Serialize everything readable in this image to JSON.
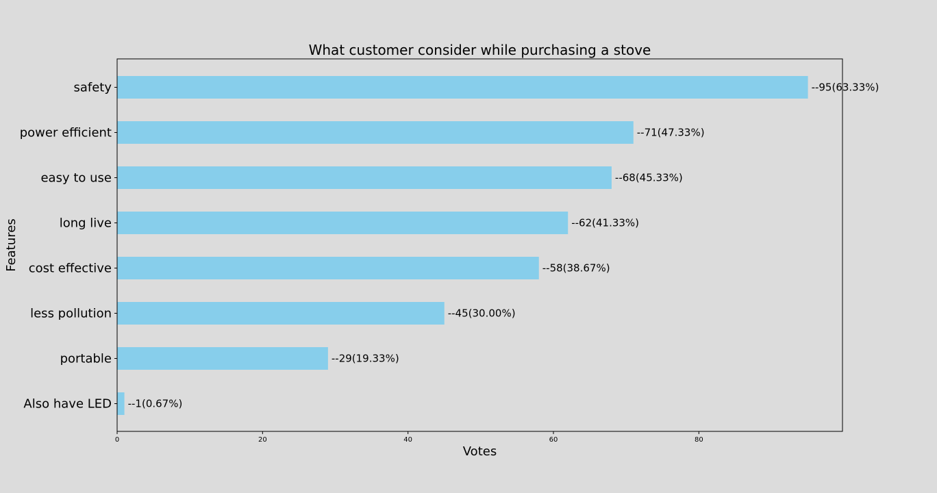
{
  "chart_data": {
    "type": "bar",
    "orientation": "horizontal",
    "title": "What customer consider while purchasing a stove",
    "xlabel": "Votes",
    "ylabel": "Features",
    "categories": [
      "safety",
      "power efficient",
      "easy to use",
      "long live",
      "cost effective",
      "less pollution",
      "portable",
      "Also have LED"
    ],
    "values": [
      95,
      71,
      68,
      62,
      58,
      45,
      29,
      1
    ],
    "data_labels": [
      "--95(63.33%)",
      "--71(47.33%)",
      "--68(45.33%)",
      "--62(41.33%)",
      "--58(38.67%)",
      "--45(30.00%)",
      "--29(19.33%)",
      "--1(0.67%)"
    ],
    "xlim": [
      0,
      99.75
    ],
    "xticks": [
      0,
      20,
      40,
      60,
      80
    ],
    "grid": false,
    "legend": "none",
    "bar_color": "#87ceeb",
    "background_color": "#dcdcdc"
  }
}
